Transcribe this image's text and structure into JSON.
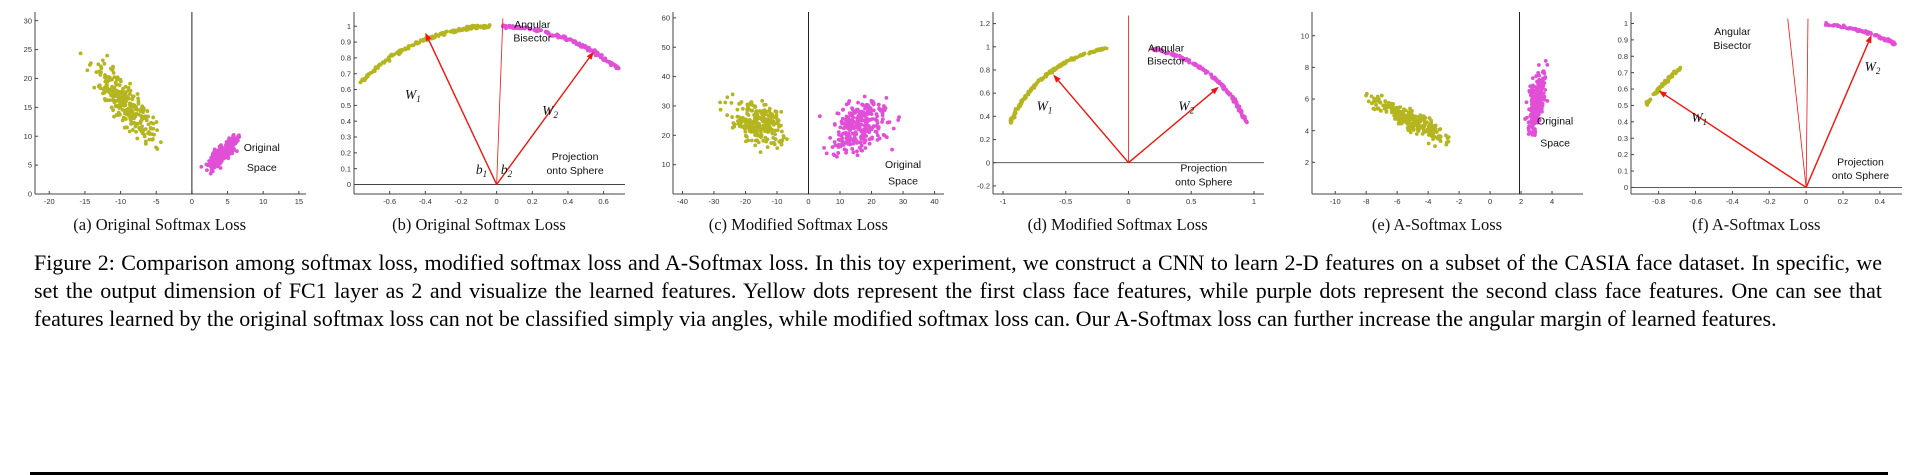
{
  "colors": {
    "class1": "#b5b520",
    "class2": "#e14fd7",
    "arrow": "#f2140c",
    "axis": "#444444",
    "separator": "#222222"
  },
  "legend_semantics": {
    "class1": "first class face features (yellow dots)",
    "class2": "second class face features (purple dots)"
  },
  "figure_caption": {
    "prefix": "Figure 2:",
    "text": "Comparison among softmax loss, modified softmax loss and A-Softmax loss. In this toy experiment, we construct a CNN to learn 2-D features on a subset of the CASIA face dataset. In specific, we set the output dimension of FC1 layer as 2 and visualize the learned features. Yellow dots represent the first class face features, while purple dots represent the second class face features. One can see that features learned by the original softmax loss can not be classified simply via angles, while modified softmax loss can. Our A-Softmax loss can further increase the angular margin of learned features."
  },
  "chart_data": [
    {
      "type": "scatter",
      "caption": "(a) Original Softmax Loss",
      "xlim": [
        -22,
        16
      ],
      "ylim": [
        0,
        31.5
      ],
      "xticks": [
        -20,
        -15,
        -10,
        -5,
        0,
        5,
        10,
        15
      ],
      "yticks": [
        0,
        5,
        10,
        15,
        20,
        25,
        30
      ],
      "separator_x": 0,
      "clusters": [
        {
          "class": "class1",
          "n": 280,
          "cx": -9.5,
          "cy": 16,
          "sx": 5,
          "sy": 4.2,
          "slope": -1.35,
          "seed": 7,
          "xmax": -0.8
        },
        {
          "class": "class2",
          "n": 230,
          "cx": 4.3,
          "cy": 7,
          "sx": 2.4,
          "sy": 2.0,
          "slope": 1.1,
          "seed": 8,
          "xmin": 0.6
        }
      ],
      "annotations": [
        {
          "text": "Original",
          "x": 9.8,
          "y": 7.4
        },
        {
          "text": "Space",
          "x": 9.8,
          "y": 4.0
        }
      ]
    },
    {
      "type": "sphere",
      "caption": "(b) Original Softmax Loss",
      "xlim": [
        -0.8,
        0.72
      ],
      "ylim": [
        -0.06,
        1.09
      ],
      "xticks": [
        -0.6,
        -0.4,
        -0.2,
        0,
        0.2,
        0.4,
        0.6
      ],
      "yticks": [
        0,
        0.1,
        0.2,
        0.3,
        0.4,
        0.5,
        0.6,
        0.7,
        0.8,
        0.9,
        1
      ],
      "baseline": 0,
      "arcs": [
        {
          "class": "class1",
          "n": 170,
          "a0": 92,
          "a1": 140,
          "jitter": 0.012,
          "seed": 11
        },
        {
          "class": "class2",
          "n": 160,
          "a0": 47,
          "a1": 88,
          "jitter": 0.012,
          "seed": 12
        }
      ],
      "bisectors": [
        [
          0.035,
          1.05
        ]
      ],
      "arrows": [
        {
          "tip": [
            -0.4,
            0.96
          ],
          "label": {
            "text": "W",
            "sub": "1",
            "x": -0.47,
            "y": 0.54
          }
        },
        {
          "tip": [
            0.545,
            0.84
          ],
          "label": {
            "text": "W",
            "sub": "2",
            "x": 0.3,
            "y": 0.44
          }
        }
      ],
      "annotations": [
        {
          "text": "Angular",
          "x": 0.2,
          "y": 0.99
        },
        {
          "text": "Bisector",
          "x": 0.2,
          "y": 0.905
        },
        {
          "text": "b",
          "sub": "1",
          "italic": true,
          "x": -0.085,
          "y": 0.065
        },
        {
          "text": "b",
          "sub": "2",
          "italic": true,
          "x": 0.055,
          "y": 0.065
        },
        {
          "text": "Projection",
          "x": 0.44,
          "y": 0.155
        },
        {
          "text": "onto Sphere",
          "x": 0.44,
          "y": 0.065
        }
      ]
    },
    {
      "type": "scatter",
      "caption": "(c) Modified Softmax Loss",
      "xlim": [
        -43,
        43
      ],
      "ylim": [
        0,
        62
      ],
      "xticks": [
        -40,
        -30,
        -20,
        -10,
        0,
        10,
        20,
        30,
        40
      ],
      "yticks": [
        10,
        20,
        30,
        40,
        50,
        60
      ],
      "separator_x": 0,
      "clusters": [
        {
          "class": "class1",
          "n": 250,
          "cx": -16,
          "cy": 24,
          "sx": 10,
          "sy": 8,
          "slope": -0.3,
          "seed": 21,
          "xmax": -1
        },
        {
          "class": "class2",
          "n": 280,
          "cx": 16,
          "cy": 23,
          "sx": 10,
          "sy": 9,
          "slope": 0.3,
          "seed": 22,
          "xmin": 1
        }
      ],
      "annotations": [
        {
          "text": "Original",
          "x": 30,
          "y": 8.8
        },
        {
          "text": "Space",
          "x": 30,
          "y": 3.2
        }
      ]
    },
    {
      "type": "sphere",
      "caption": "(d) Modified Softmax Loss",
      "xlim": [
        -1.08,
        1.08
      ],
      "ylim": [
        -0.27,
        1.3
      ],
      "xticks": [
        -1,
        -0.5,
        0,
        0.5,
        1
      ],
      "yticks": [
        -0.2,
        0,
        0.2,
        0.4,
        0.6,
        0.8,
        1,
        1.2
      ],
      "baseline": 0,
      "arcs": [
        {
          "class": "class1",
          "n": 180,
          "a0": 100,
          "a1": 160,
          "jitter": 0.012,
          "seed": 31
        },
        {
          "class": "class2",
          "n": 180,
          "a0": 20,
          "a1": 79,
          "jitter": 0.012,
          "seed": 32
        }
      ],
      "bisectors": [
        [
          0,
          1.27
        ]
      ],
      "arrows": [
        {
          "tip": [
            -0.6,
            0.76
          ],
          "label": {
            "text": "W",
            "sub": "1",
            "x": -0.67,
            "y": 0.45
          }
        },
        {
          "tip": [
            0.72,
            0.655
          ],
          "label": {
            "text": "W",
            "sub": "2",
            "x": 0.46,
            "y": 0.45
          }
        }
      ],
      "annotations": [
        {
          "text": "Angular",
          "x": 0.3,
          "y": 0.96
        },
        {
          "text": "Bisector",
          "x": 0.3,
          "y": 0.845
        },
        {
          "text": "Projection",
          "x": 0.6,
          "y": -0.075
        },
        {
          "text": "onto Sphere",
          "x": 0.6,
          "y": -0.195
        }
      ]
    },
    {
      "type": "scatter",
      "caption": "(e) A-Softmax Loss",
      "xlim": [
        -11.5,
        6
      ],
      "ylim": [
        0,
        11.5
      ],
      "xticks": [
        -10,
        -8,
        -6,
        -4,
        -2,
        0,
        2,
        4
      ],
      "yticks": [
        2,
        4,
        6,
        8,
        10
      ],
      "separator_x": 1.9,
      "clusters": [
        {
          "class": "class1",
          "n": 260,
          "cx": -5.2,
          "cy": 4.7,
          "sx": 2.8,
          "sy": 0.75,
          "slope": -0.5,
          "seed": 41,
          "xmax": 0.8
        },
        {
          "class": "class2",
          "n": 230,
          "cx": 3.0,
          "cy": 5.8,
          "sx": 0.6,
          "sy": 1.9,
          "slope": 1.6,
          "seed": 42,
          "xmin": 2.05
        }
      ],
      "annotations": [
        {
          "text": "Original",
          "x": 4.2,
          "y": 4.4
        },
        {
          "text": "Space",
          "x": 4.2,
          "y": 3.0
        }
      ]
    },
    {
      "type": "sphere",
      "caption": "(f) A-Softmax Loss",
      "xlim": [
        -0.95,
        0.52
      ],
      "ylim": [
        -0.04,
        1.07
      ],
      "xticks": [
        -0.8,
        -0.6,
        -0.4,
        -0.2,
        0,
        0.2,
        0.4
      ],
      "yticks": [
        0,
        0.1,
        0.2,
        0.3,
        0.4,
        0.5,
        0.6,
        0.7,
        0.8,
        0.9,
        1
      ],
      "baseline": 0,
      "arcs": [
        {
          "class": "class1",
          "n": 80,
          "a0": 133,
          "a1": 150,
          "jitter": 0.009,
          "seed": 51
        },
        {
          "class": "class2",
          "n": 95,
          "a0": 61,
          "a1": 84,
          "jitter": 0.009,
          "seed": 52
        }
      ],
      "bisectors": [
        [
          -0.1,
          1.03
        ],
        [
          0.01,
          1.03
        ]
      ],
      "arrows": [
        {
          "tip": [
            -0.8,
            0.59
          ],
          "label": {
            "text": "W",
            "sub": "1",
            "x": -0.58,
            "y": 0.4
          }
        },
        {
          "tip": [
            0.355,
            0.93
          ],
          "label": {
            "text": "W",
            "sub": "2",
            "x": 0.36,
            "y": 0.71
          }
        }
      ],
      "annotations": [
        {
          "text": "Angular",
          "x": -0.4,
          "y": 0.93
        },
        {
          "text": "Bisector",
          "x": -0.4,
          "y": 0.845
        },
        {
          "text": "Projection",
          "x": 0.295,
          "y": 0.135
        },
        {
          "text": "onto Sphere",
          "x": 0.295,
          "y": 0.05
        }
      ]
    }
  ]
}
